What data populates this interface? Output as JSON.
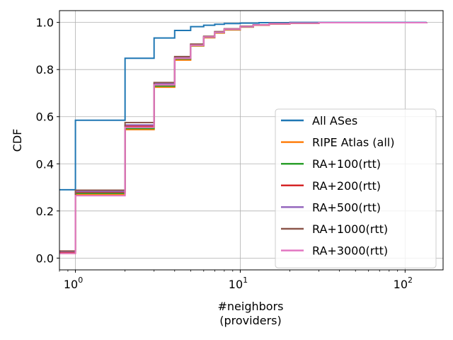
{
  "chart_data": {
    "type": "line",
    "step": true,
    "xscale": "log",
    "xlabel": "#neighbors\n(providers)",
    "ylabel": "CDF",
    "xlim": [
      0.8,
      170
    ],
    "ylim": [
      -0.05,
      1.05
    ],
    "xticks": [
      {
        "value": 1,
        "base": "10",
        "exp": "0"
      },
      {
        "value": 10,
        "base": "10",
        "exp": "1"
      },
      {
        "value": 100,
        "base": "10",
        "exp": "2"
      }
    ],
    "yticks": [
      {
        "value": 0.0,
        "label": "0.0"
      },
      {
        "value": 0.2,
        "label": "0.2"
      },
      {
        "value": 0.4,
        "label": "0.4"
      },
      {
        "value": 0.6,
        "label": "0.6"
      },
      {
        "value": 0.8,
        "label": "0.8"
      },
      {
        "value": 1.0,
        "label": "1.0"
      }
    ],
    "grid": true,
    "legend": "lower-right",
    "series": [
      {
        "name": "All ASes",
        "color": "#1f77b4",
        "x": [
          0.8,
          1,
          2,
          3,
          4,
          5,
          6,
          7,
          8,
          10,
          13,
          20,
          135
        ],
        "y": [
          0.29,
          0.585,
          0.848,
          0.934,
          0.966,
          0.982,
          0.988,
          0.992,
          0.995,
          0.997,
          0.999,
          1.0,
          1.0
        ]
      },
      {
        "name": "RIPE Atlas (all)",
        "color": "#ff7f0e",
        "x": [
          0.8,
          1,
          2,
          3,
          4,
          5,
          6,
          7,
          8,
          10,
          12,
          15,
          20,
          30,
          135
        ],
        "y": [
          0.02,
          0.27,
          0.545,
          0.725,
          0.84,
          0.9,
          0.935,
          0.955,
          0.968,
          0.98,
          0.988,
          0.993,
          0.996,
          0.999,
          1.0
        ]
      },
      {
        "name": "RA+100(rtt)",
        "color": "#2ca02c",
        "x": [
          0.8,
          1,
          2,
          3,
          4,
          5,
          6,
          7,
          8,
          10,
          12,
          15,
          20,
          30,
          135
        ],
        "y": [
          0.025,
          0.275,
          0.55,
          0.73,
          0.845,
          0.902,
          0.937,
          0.957,
          0.97,
          0.981,
          0.989,
          0.994,
          0.997,
          0.999,
          1.0
        ]
      },
      {
        "name": "RA+200(rtt)",
        "color": "#d62728",
        "x": [
          0.8,
          1,
          2,
          3,
          4,
          5,
          6,
          7,
          8,
          10,
          12,
          15,
          20,
          30,
          135
        ],
        "y": [
          0.025,
          0.28,
          0.56,
          0.735,
          0.848,
          0.904,
          0.938,
          0.958,
          0.971,
          0.982,
          0.989,
          0.994,
          0.997,
          0.999,
          1.0
        ]
      },
      {
        "name": "RA+500(rtt)",
        "color": "#9467bd",
        "x": [
          0.8,
          1,
          2,
          3,
          4,
          5,
          6,
          7,
          8,
          10,
          12,
          15,
          20,
          30,
          135
        ],
        "y": [
          0.028,
          0.283,
          0.565,
          0.74,
          0.85,
          0.906,
          0.94,
          0.96,
          0.972,
          0.983,
          0.99,
          0.995,
          0.997,
          0.999,
          1.0
        ]
      },
      {
        "name": "RA+1000(rtt)",
        "color": "#8c564b",
        "x": [
          0.8,
          1,
          2,
          3,
          4,
          5,
          6,
          7,
          8,
          10,
          12,
          15,
          20,
          30,
          135
        ],
        "y": [
          0.03,
          0.288,
          0.575,
          0.745,
          0.855,
          0.908,
          0.941,
          0.961,
          0.973,
          0.984,
          0.99,
          0.995,
          0.997,
          0.999,
          1.0
        ]
      },
      {
        "name": "RA+3000(rtt)",
        "color": "#e377c2",
        "x": [
          0.8,
          1,
          2,
          3,
          4,
          5,
          6,
          7,
          8,
          10,
          12,
          15,
          20,
          30,
          135
        ],
        "y": [
          0.02,
          0.265,
          0.555,
          0.735,
          0.848,
          0.903,
          0.938,
          0.958,
          0.971,
          0.982,
          0.989,
          0.994,
          0.997,
          0.999,
          1.0
        ]
      }
    ]
  }
}
